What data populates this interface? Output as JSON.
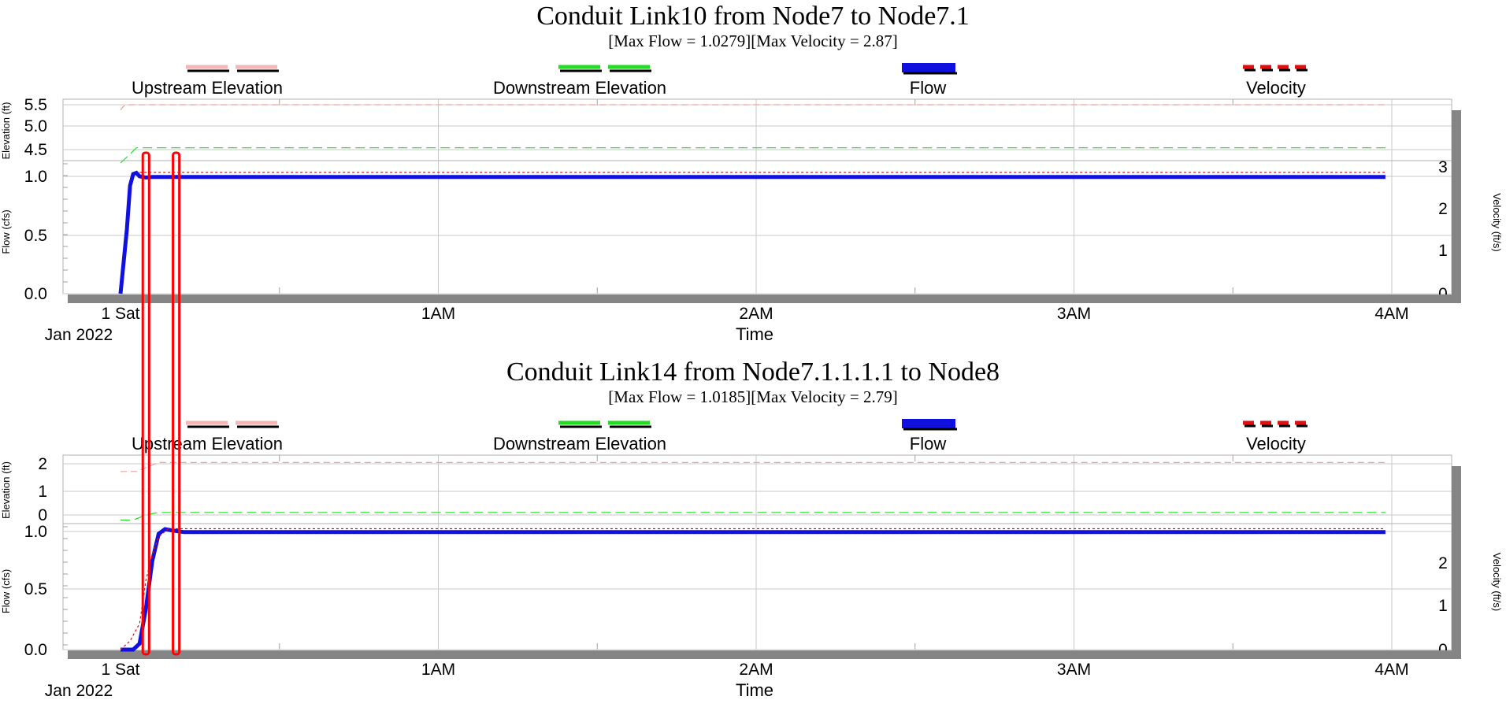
{
  "chart_data": [
    {
      "type": "line",
      "title": "Conduit Link10 from Node7 to Node7.1",
      "subtitle": "[Max Flow = 1.0279][Max Velocity = 2.87]",
      "legend": [
        {
          "name": "Upstream Elevation",
          "color": "#f4b6b6",
          "style": "dashed"
        },
        {
          "name": "Downstream Elevation",
          "color": "#22dd22",
          "style": "dashed"
        },
        {
          "name": "Flow",
          "color": "#1010e0",
          "style": "solid"
        },
        {
          "name": "Velocity",
          "color": "#e01010",
          "style": "dashed"
        }
      ],
      "xlabel": "Time",
      "xticks": [
        "1 Sat",
        "1AM",
        "2AM",
        "3AM",
        "4AM"
      ],
      "xtick_sublabel": "Jan 2022",
      "x_range_hours": [
        0,
        4
      ],
      "elevation_axis": {
        "label": "Elevation (ft)",
        "ticks": [
          "5.5",
          "5.0",
          "4.5"
        ]
      },
      "flow_axis": {
        "label": "Flow (cfs)",
        "ticks": [
          "1.0",
          "0.5",
          "0.0"
        ],
        "ylim": [
          0,
          1.1
        ]
      },
      "velocity_axis": {
        "label": "Velocity (ft/s)",
        "ticks": [
          "3",
          "2",
          "1",
          "0"
        ],
        "ylim": [
          0,
          3
        ]
      },
      "series": [
        {
          "name": "Flow",
          "x": [
            0.0,
            0.02,
            0.03,
            0.04,
            0.05,
            0.06,
            0.08,
            0.1,
            1.0,
            2.0,
            3.0,
            3.98
          ],
          "y": [
            0.0,
            0.55,
            0.92,
            1.02,
            1.03,
            1.0,
            0.99,
            0.995,
            0.995,
            0.995,
            0.995,
            0.995
          ]
        },
        {
          "name": "Velocity",
          "x": [
            0.06,
            1.0,
            2.0,
            3.0,
            3.98
          ],
          "y": [
            2.87,
            2.87,
            2.87,
            2.87,
            2.87
          ]
        },
        {
          "name": "Upstream Elevation",
          "x": [
            0.0,
            0.01,
            0.03,
            1.0,
            3.98
          ],
          "y": [
            5.38,
            5.47,
            5.5,
            5.5,
            5.5
          ]
        },
        {
          "name": "Downstream Elevation",
          "x": [
            0.0,
            0.03,
            0.05,
            1.0,
            3.98
          ],
          "y": [
            4.2,
            4.4,
            4.54,
            4.54,
            4.54
          ]
        }
      ]
    },
    {
      "type": "line",
      "title": "Conduit Link14 from Node7.1.1.1.1 to Node8",
      "subtitle": "[Max Flow = 1.0185][Max Velocity = 2.79]",
      "legend": [
        {
          "name": "Upstream Elevation",
          "color": "#f4b6b6",
          "style": "dashed"
        },
        {
          "name": "Downstream Elevation",
          "color": "#22dd22",
          "style": "dashed"
        },
        {
          "name": "Flow",
          "color": "#1010e0",
          "style": "solid"
        },
        {
          "name": "Velocity",
          "color": "#e01010",
          "style": "dashed"
        }
      ],
      "xlabel": "Time",
      "xticks": [
        "1 Sat",
        "1AM",
        "2AM",
        "3AM",
        "4AM"
      ],
      "xtick_sublabel": "Jan 2022",
      "x_range_hours": [
        0,
        4
      ],
      "elevation_axis": {
        "label": "Elevation (ft)",
        "ticks": [
          "2",
          "1",
          "0"
        ]
      },
      "flow_axis": {
        "label": "Flow (cfs)",
        "ticks": [
          "1.0",
          "0.5",
          "0.0"
        ],
        "ylim": [
          0,
          1.1
        ]
      },
      "velocity_axis": {
        "label": "Velocity (ft/s)",
        "ticks": [
          "2",
          "1",
          "0"
        ],
        "ylim": [
          0,
          2.8
        ]
      },
      "series": [
        {
          "name": "Flow",
          "x": [
            0.0,
            0.04,
            0.06,
            0.08,
            0.1,
            0.12,
            0.14,
            0.16,
            0.2,
            1.0,
            2.0,
            3.0,
            3.98
          ],
          "y": [
            0.0,
            0.0,
            0.05,
            0.35,
            0.75,
            0.98,
            1.02,
            1.01,
            0.995,
            0.995,
            0.995,
            0.995,
            0.995
          ]
        },
        {
          "name": "Velocity",
          "x": [
            0.0,
            0.03,
            0.06,
            0.08,
            0.1,
            0.12,
            0.15,
            1.0,
            3.98
          ],
          "y": [
            0.0,
            0.2,
            0.6,
            1.6,
            2.2,
            2.6,
            2.79,
            2.79,
            2.79
          ]
        },
        {
          "name": "Upstream Elevation",
          "x": [
            0.0,
            0.05,
            0.08,
            0.12,
            1.0,
            3.98
          ],
          "y": [
            1.7,
            1.7,
            1.85,
            2.05,
            2.05,
            2.05
          ]
        },
        {
          "name": "Downstream Elevation",
          "x": [
            0.0,
            0.04,
            0.08,
            0.12,
            1.0,
            3.98
          ],
          "y": [
            -0.2,
            -0.2,
            0.0,
            0.1,
            0.1,
            0.1
          ]
        }
      ]
    }
  ],
  "highlights": [
    {
      "name": "highlight-box-1",
      "x_start": 0.07,
      "x_end": 0.09,
      "color": "#ff0000"
    },
    {
      "name": "highlight-box-2",
      "x_start": 0.165,
      "x_end": 0.185,
      "color": "#ff0000"
    }
  ]
}
